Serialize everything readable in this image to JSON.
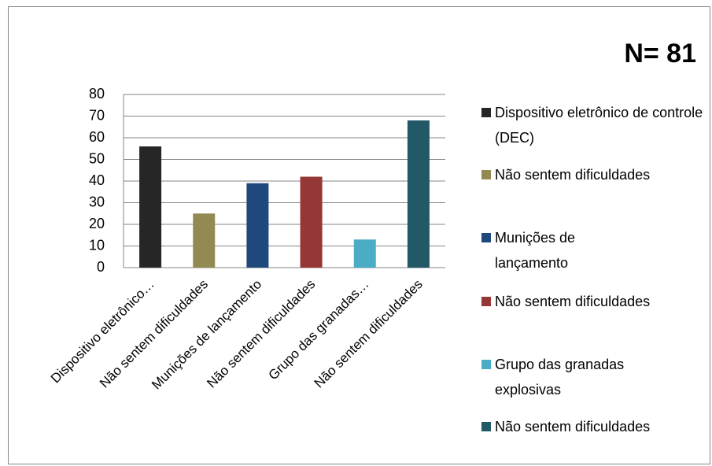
{
  "chart_data": {
    "type": "bar",
    "annotation": "N= 81",
    "categories": [
      "Dispositivo eletrônico…",
      "Não sentem dificuldades",
      "Munições de lançamento",
      "Não sentem dificuldades",
      "Grupo das granadas…",
      "Não sentem dificuldades"
    ],
    "values": [
      56,
      25,
      39,
      42,
      13,
      68
    ],
    "colors": [
      "#262626",
      "#938953",
      "#1f497d",
      "#953735",
      "#4bacc6",
      "#215967"
    ],
    "legend": [
      "Dispositivo eletrônico de controle (DEC)",
      "Não sentem dificuldades",
      "Munições de lançamento",
      "Não sentem dificuldades",
      "Grupo das granadas explosivas",
      "Não sentem dificuldades"
    ],
    "ylim": [
      0,
      80
    ],
    "yticks": [
      0,
      10,
      20,
      30,
      40,
      50,
      60,
      70,
      80
    ],
    "grid": true
  }
}
